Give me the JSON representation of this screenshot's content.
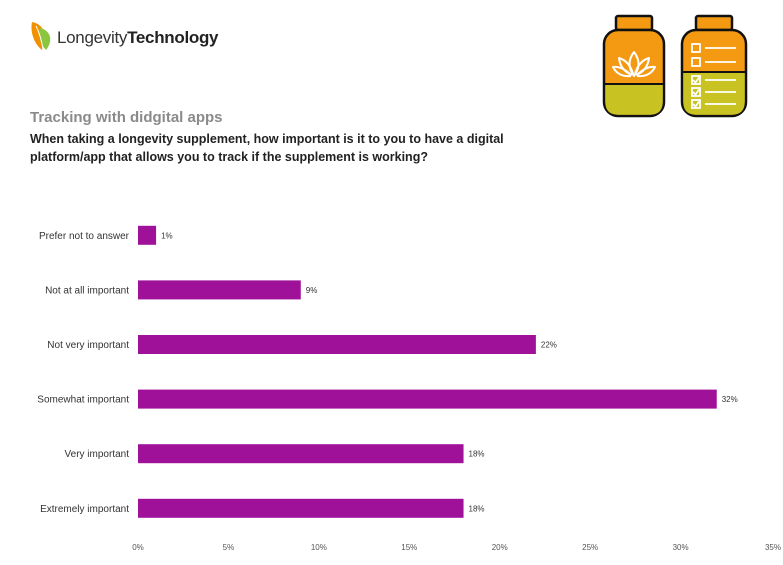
{
  "brand": {
    "name_light": "Longevity",
    "name_bold": "Technology"
  },
  "icons": {
    "logo": "leaf-logo-icon",
    "jar_left": "lotus-jar-icon",
    "jar_right": "checklist-jar-icon"
  },
  "colors": {
    "bar": "#a0119a",
    "jar_orange": "#f39a12",
    "jar_olive": "#c8c222",
    "leaf_orange": "#f29100",
    "leaf_green": "#8cc63f"
  },
  "subtitle": "Tracking with didgital apps",
  "question": "When taking a longevity supplement, how important is it to you to have a digital platform/app that allows you to track if the supplement is working?",
  "chart_data": {
    "type": "bar",
    "orientation": "horizontal",
    "categories": [
      "Prefer not to answer",
      "Not at all important",
      "Not very important",
      "Somewhat important",
      "Very important",
      "Extremely important"
    ],
    "values": [
      1,
      9,
      22,
      32,
      18,
      18
    ],
    "value_labels": [
      "1%",
      "9%",
      "22%",
      "32%",
      "18%",
      "18%"
    ],
    "x_ticks": [
      0,
      5,
      10,
      15,
      20,
      25,
      30,
      35
    ],
    "x_tick_labels": [
      "0%",
      "5%",
      "10%",
      "15%",
      "20%",
      "25%",
      "30%",
      "35%"
    ],
    "xlim": [
      0,
      35
    ],
    "xlabel": "",
    "ylabel": "",
    "grid": false
  }
}
